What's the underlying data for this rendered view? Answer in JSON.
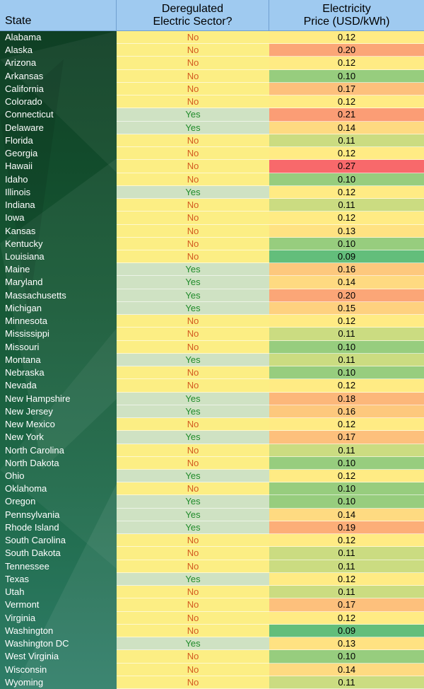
{
  "header": {
    "state": "State",
    "dereg_line1": "Deregulated",
    "dereg_line2": "Electric Sector?",
    "price_line1": "Electricity",
    "price_line2": "Price (USD/kWh)"
  },
  "colors": {
    "header_bg": "#9fcaf0",
    "state_col_bg": "#155532",
    "no_bg": "#fcee84",
    "no_text": "#d35b22",
    "yes_bg": "#cfe2c3",
    "yes_text": "#1f8a2a",
    "price_low": "#63be7b",
    "price_mid": "#ffeb84",
    "price_high": "#f8696b"
  },
  "chart_data": {
    "type": "table",
    "columns": [
      "State",
      "Deregulated Electric Sector?",
      "Electricity Price (USD/kWh)"
    ],
    "rows": [
      {
        "state": "Alabama",
        "deregulated": "No",
        "price": 0.12
      },
      {
        "state": "Alaska",
        "deregulated": "No",
        "price": 0.2
      },
      {
        "state": "Arizona",
        "deregulated": "No",
        "price": 0.12
      },
      {
        "state": "Arkansas",
        "deregulated": "No",
        "price": 0.1
      },
      {
        "state": "California",
        "deregulated": "No",
        "price": 0.17
      },
      {
        "state": "Colorado",
        "deregulated": "No",
        "price": 0.12
      },
      {
        "state": "Connecticut",
        "deregulated": "Yes",
        "price": 0.21
      },
      {
        "state": "Delaware",
        "deregulated": "Yes",
        "price": 0.14
      },
      {
        "state": "Florida",
        "deregulated": "No",
        "price": 0.11
      },
      {
        "state": "Georgia",
        "deregulated": "No",
        "price": 0.12
      },
      {
        "state": "Hawaii",
        "deregulated": "No",
        "price": 0.27
      },
      {
        "state": "Idaho",
        "deregulated": "No",
        "price": 0.1
      },
      {
        "state": "Illinois",
        "deregulated": "Yes",
        "price": 0.12
      },
      {
        "state": "Indiana",
        "deregulated": "No",
        "price": 0.11
      },
      {
        "state": "Iowa",
        "deregulated": "No",
        "price": 0.12
      },
      {
        "state": "Kansas",
        "deregulated": "No",
        "price": 0.13
      },
      {
        "state": "Kentucky",
        "deregulated": "No",
        "price": 0.1
      },
      {
        "state": "Louisiana",
        "deregulated": "No",
        "price": 0.09
      },
      {
        "state": "Maine",
        "deregulated": "Yes",
        "price": 0.16
      },
      {
        "state": "Maryland",
        "deregulated": "Yes",
        "price": 0.14
      },
      {
        "state": "Massachusetts",
        "deregulated": "Yes",
        "price": 0.2
      },
      {
        "state": "Michigan",
        "deregulated": "Yes",
        "price": 0.15
      },
      {
        "state": "Minnesota",
        "deregulated": "No",
        "price": 0.12
      },
      {
        "state": "Mississippi",
        "deregulated": "No",
        "price": 0.11
      },
      {
        "state": "Missouri",
        "deregulated": "No",
        "price": 0.1
      },
      {
        "state": "Montana",
        "deregulated": "Yes",
        "price": 0.11
      },
      {
        "state": "Nebraska",
        "deregulated": "No",
        "price": 0.1
      },
      {
        "state": "Nevada",
        "deregulated": "No",
        "price": 0.12
      },
      {
        "state": "New Hampshire",
        "deregulated": "Yes",
        "price": 0.18
      },
      {
        "state": "New Jersey",
        "deregulated": "Yes",
        "price": 0.16
      },
      {
        "state": "New Mexico",
        "deregulated": "No",
        "price": 0.12
      },
      {
        "state": "New York",
        "deregulated": "Yes",
        "price": 0.17
      },
      {
        "state": "North Carolina",
        "deregulated": "No",
        "price": 0.11
      },
      {
        "state": "North Dakota",
        "deregulated": "No",
        "price": 0.1
      },
      {
        "state": "Ohio",
        "deregulated": "Yes",
        "price": 0.12
      },
      {
        "state": "Oklahoma",
        "deregulated": "No",
        "price": 0.1
      },
      {
        "state": "Oregon",
        "deregulated": "Yes",
        "price": 0.1
      },
      {
        "state": "Pennsylvania",
        "deregulated": "Yes",
        "price": 0.14
      },
      {
        "state": "Rhode Island",
        "deregulated": "Yes",
        "price": 0.19
      },
      {
        "state": "South Carolina",
        "deregulated": "No",
        "price": 0.12
      },
      {
        "state": "South Dakota",
        "deregulated": "No",
        "price": 0.11
      },
      {
        "state": "Tennessee",
        "deregulated": "No",
        "price": 0.11
      },
      {
        "state": "Texas",
        "deregulated": "Yes",
        "price": 0.12
      },
      {
        "state": "Utah",
        "deregulated": "No",
        "price": 0.11
      },
      {
        "state": "Vermont",
        "deregulated": "No",
        "price": 0.17
      },
      {
        "state": "Virginia",
        "deregulated": "No",
        "price": 0.12
      },
      {
        "state": "Washington",
        "deregulated": "No",
        "price": 0.09
      },
      {
        "state": "Washington DC",
        "deregulated": "Yes",
        "price": 0.13
      },
      {
        "state": "West Virginia",
        "deregulated": "No",
        "price": 0.1
      },
      {
        "state": "Wisconsin",
        "deregulated": "No",
        "price": 0.14
      },
      {
        "state": "Wyoming",
        "deregulated": "No",
        "price": 0.11
      }
    ]
  }
}
